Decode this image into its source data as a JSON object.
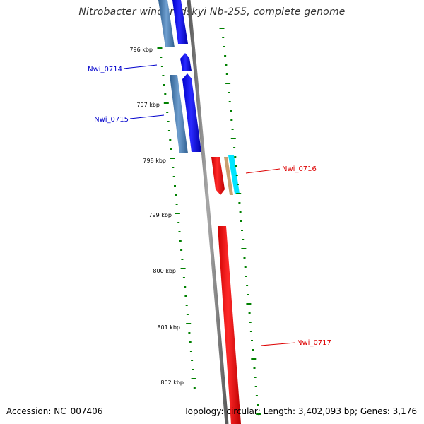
{
  "title": "Nitrobacter winogradskyi Nb-255, complete genome",
  "footer": {
    "accession": "Accession: NC_007406",
    "summary": "Topology: circular; Length: 3,402,093 bp; Genes: 3,176"
  },
  "colors": {
    "forward_cds": "#0000ee",
    "forward_gene": "#4a7fb0",
    "reverse_cds": "#ff0000",
    "backbone": "#808080",
    "gc_skew": "#008000",
    "forward_label": "#0000cc",
    "reverse_label": "#dd0000"
  },
  "ruler": {
    "ticks": [
      "796 kbp",
      "797 kbp",
      "798 kbp",
      "799 kbp",
      "800 kbp",
      "801 kbp",
      "802 kbp"
    ]
  },
  "genes": [
    {
      "id": "gene-nwi-0714",
      "label": "Nwi_0714",
      "strand": "forward"
    },
    {
      "id": "gene-nwi-0715",
      "label": "Nwi_0715",
      "strand": "forward"
    },
    {
      "id": "gene-nwi-0716",
      "label": "Nwi_0716",
      "strand": "reverse"
    },
    {
      "id": "gene-nwi-0717",
      "label": "Nwi_0717",
      "strand": "reverse"
    }
  ]
}
